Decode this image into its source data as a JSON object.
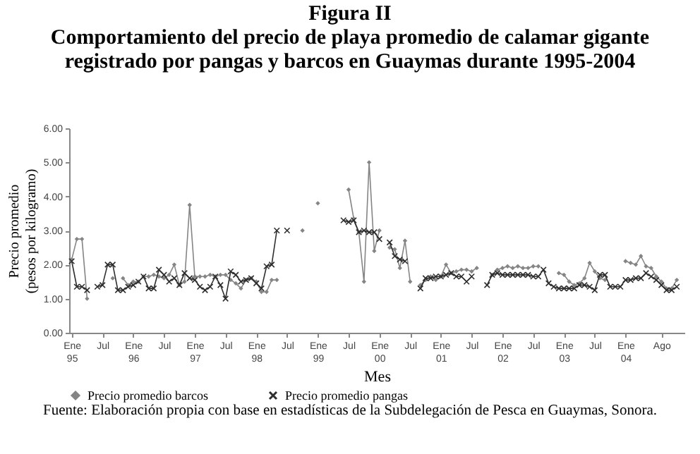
{
  "chart_data": {
    "type": "line",
    "title": "Figura II",
    "subtitle": "Comportamiento del precio de playa promedio de calamar gigante registrado por pangas y barcos en Guaymas durante 1995-2004",
    "xlabel": "Mes",
    "ylabel": "Precio promedio (pesos por kilogramo)",
    "annotations": [
      "Fuente: Elaboración propia con base en estadísticas de la Subdelegación de Pesca en Guaymas, Sonora."
    ],
    "categories": [
      "Ene 95",
      null,
      null,
      null,
      null,
      null,
      "Jul",
      null,
      null,
      null,
      null,
      null,
      "Ene 96",
      null,
      null,
      null,
      null,
      null,
      "Jul",
      null,
      null,
      null,
      null,
      null,
      "Ene 97",
      null,
      null,
      null,
      null,
      null,
      "Jul",
      null,
      null,
      null,
      null,
      null,
      "Ene 98",
      null,
      null,
      null,
      null,
      null,
      "Jul",
      null,
      null,
      null,
      null,
      null,
      "Ene 99",
      null,
      null,
      null,
      null,
      null,
      "Jul",
      null,
      null,
      null,
      null,
      null,
      "Ene 00",
      null,
      null,
      null,
      null,
      null,
      "Jul",
      null,
      null,
      null,
      null,
      null,
      "Ene 01",
      null,
      null,
      null,
      null,
      null,
      "Jul",
      null,
      null,
      null,
      null,
      null,
      "Ene 02",
      null,
      null,
      null,
      null,
      null,
      "Jul",
      null,
      null,
      null,
      null,
      null,
      "Ene 03",
      null,
      null,
      null,
      null,
      null,
      "Jul",
      null,
      null,
      null,
      null,
      null,
      "Ene 04",
      null,
      null,
      null,
      null,
      null,
      null,
      "Ago",
      null,
      null,
      null,
      null
    ],
    "series": [
      {
        "name": "Precio promedio barcos",
        "color": "#858585",
        "marker": "diamond",
        "values": [
          2.15,
          2.75,
          2.75,
          1.0,
          null,
          null,
          null,
          null,
          1.6,
          null,
          1.6,
          1.4,
          1.5,
          1.5,
          1.65,
          1.65,
          1.7,
          1.65,
          1.6,
          1.7,
          2.0,
          1.4,
          1.5,
          3.75,
          1.65,
          1.65,
          1.65,
          1.7,
          1.65,
          1.7,
          1.7,
          1.55,
          1.45,
          1.3,
          1.55,
          1.6,
          1.5,
          1.2,
          1.2,
          1.55,
          1.55,
          null,
          null,
          null,
          null,
          3.0,
          null,
          null,
          3.8,
          null,
          null,
          null,
          null,
          null,
          4.2,
          3.35,
          2.95,
          1.5,
          5.0,
          2.4,
          3.0,
          null,
          2.5,
          2.45,
          1.9,
          2.7,
          1.5,
          null,
          1.4,
          1.55,
          1.65,
          1.55,
          1.65,
          2.0,
          1.75,
          1.8,
          1.85,
          1.85,
          1.8,
          1.9,
          null,
          null,
          1.7,
          1.85,
          1.9,
          1.95,
          1.9,
          1.95,
          1.9,
          1.9,
          1.95,
          1.95,
          null,
          null,
          null,
          1.75,
          1.7,
          1.5,
          1.4,
          1.45,
          1.6,
          2.05,
          1.8,
          1.6,
          1.55,
          null,
          null,
          null,
          2.1,
          2.05,
          2.0,
          2.25,
          1.95,
          1.9,
          1.65,
          1.5,
          1.3,
          1.3,
          1.55,
          null
        ]
      },
      {
        "name": "Precio promedio pangas",
        "color": "#2e2e2e",
        "marker": "cross",
        "values": [
          2.1,
          1.35,
          1.35,
          1.25,
          null,
          1.35,
          1.4,
          2.0,
          2.0,
          1.25,
          1.25,
          1.35,
          1.4,
          1.5,
          1.65,
          1.3,
          1.3,
          1.85,
          1.7,
          1.5,
          1.6,
          1.4,
          1.75,
          1.6,
          1.55,
          1.35,
          1.25,
          1.35,
          1.65,
          1.4,
          1.0,
          1.8,
          1.7,
          1.5,
          1.55,
          1.6,
          1.45,
          1.3,
          1.95,
          2.0,
          3.0,
          null,
          3.0,
          null,
          null,
          null,
          null,
          null,
          null,
          null,
          null,
          null,
          null,
          3.3,
          3.25,
          3.3,
          2.95,
          3.0,
          2.95,
          2.95,
          2.75,
          null,
          2.65,
          2.25,
          2.15,
          2.1,
          null,
          null,
          1.3,
          1.6,
          1.6,
          1.65,
          1.65,
          1.7,
          1.75,
          1.65,
          1.65,
          1.5,
          1.65,
          null,
          null,
          1.4,
          1.7,
          1.75,
          1.7,
          1.7,
          1.7,
          1.7,
          1.7,
          1.7,
          1.65,
          1.65,
          1.85,
          1.45,
          1.35,
          1.3,
          1.3,
          1.3,
          1.3,
          1.4,
          1.4,
          1.35,
          1.25,
          1.7,
          1.7,
          1.35,
          1.35,
          1.35,
          1.55,
          1.55,
          1.6,
          1.6,
          1.75,
          1.65,
          1.55,
          1.4,
          1.25,
          1.25,
          1.35,
          null
        ]
      }
    ],
    "ylim": [
      0,
      6
    ],
    "yticks": [
      {
        "value": 0,
        "label": "0.00"
      },
      {
        "value": 1,
        "label": "1.00"
      },
      {
        "value": 2,
        "label": "2.00"
      },
      {
        "value": 3,
        "label": "3.00"
      },
      {
        "value": 4,
        "label": "4.00"
      },
      {
        "value": 5,
        "label": "5.00"
      },
      {
        "value": 6,
        "label": "6.00"
      }
    ],
    "grid": false,
    "legend": "bottom"
  }
}
